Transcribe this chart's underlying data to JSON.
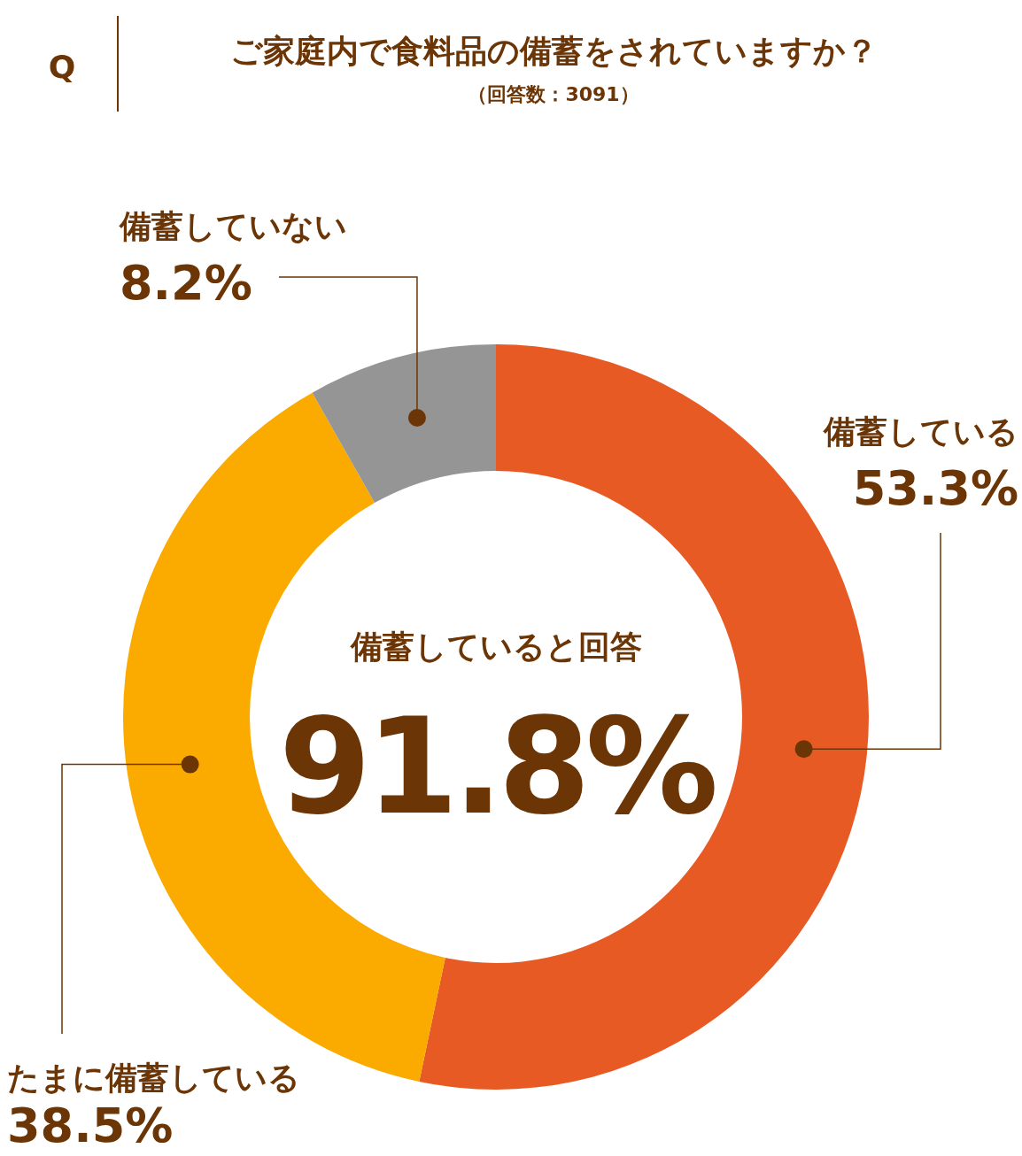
{
  "chart_data": {
    "type": "donut",
    "title": "ご家庭内で食料品の備蓄をされていますか？",
    "subtitle": "（回答数：3091）",
    "categories": [
      "備蓄している",
      "たまに備蓄している",
      "備蓄していない"
    ],
    "values": [
      53.3,
      38.5,
      8.2
    ],
    "colors": [
      "#e85a24",
      "#fbaa00",
      "#959595"
    ],
    "value_labels": [
      "53.3%",
      "38.5%",
      "8.2%"
    ],
    "annotations": [
      "Q",
      "備蓄していると回答",
      "91.8%"
    ]
  }
}
